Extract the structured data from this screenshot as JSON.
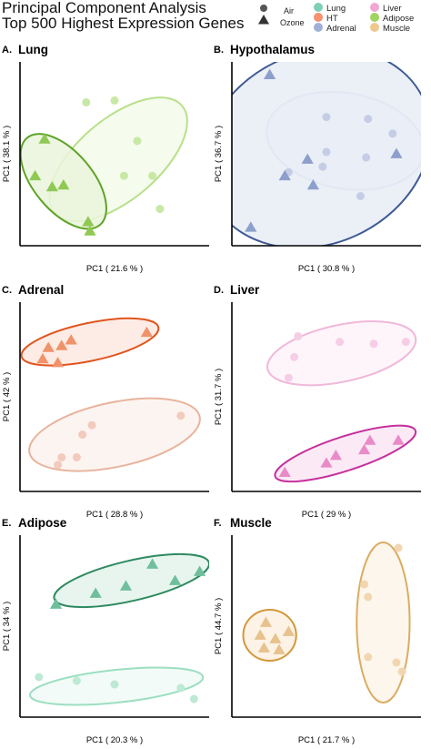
{
  "title_lines": [
    "Principal Component Analysis",
    "Top 500 Highest Expression Genes"
  ],
  "legend": {
    "shapes": [
      {
        "label": "Air",
        "shape": "circle"
      },
      {
        "label": "Ozone",
        "shape": "triangle"
      }
    ],
    "tissues": [
      {
        "label": "Lung",
        "color": "#7fcfb8"
      },
      {
        "label": "HT",
        "color": "#f4916e"
      },
      {
        "label": "Adrenal",
        "color": "#9fb0d8"
      },
      {
        "label": "Liver",
        "color": "#f2a6d3"
      },
      {
        "label": "Adipose",
        "color": "#9ed45f"
      },
      {
        "label": "Muscle",
        "color": "#efc88d"
      }
    ]
  },
  "chart_data": [
    {
      "type": "scatter",
      "panel": "A.",
      "title": "Lung",
      "xlabel": "PC1 ( 21.6 % )",
      "ylabel": "PC1 ( 38.1 % )",
      "colors": {
        "air_point": "#c8e8a6",
        "air_ellipse": "#b8e08a",
        "air_fill": "#f3faea",
        "ozone_point": "#8fc954",
        "ozone_ellipse": "#5ea326",
        "ozone_fill": "#eaf4dc"
      },
      "series": [
        {
          "name": "Air",
          "points": [
            [
              0.35,
              0.78
            ],
            [
              0.5,
              0.79
            ],
            [
              0.62,
              0.57
            ],
            [
              0.7,
              0.38
            ],
            [
              0.55,
              0.38
            ],
            [
              0.74,
              0.2
            ]
          ]
        },
        {
          "name": "Ozone",
          "points": [
            [
              0.13,
              0.58
            ],
            [
              0.08,
              0.38
            ],
            [
              0.17,
              0.32
            ],
            [
              0.23,
              0.33
            ],
            [
              0.36,
              0.13
            ],
            [
              0.37,
              0.08
            ]
          ]
        }
      ],
      "ellipses": [
        {
          "group": "Air",
          "cx": 0.52,
          "cy": 0.47,
          "rx": 0.44,
          "ry": 0.22,
          "angle": -40
        },
        {
          "group": "Ozone",
          "cx": 0.23,
          "cy": 0.35,
          "rx": 0.3,
          "ry": 0.16,
          "angle": 50
        }
      ]
    },
    {
      "type": "scatter",
      "panel": "B.",
      "title": "Hypothalamus",
      "xlabel": "PC1 ( 30.8 % )",
      "ylabel": "PC1 ( 36.7 % )",
      "colors": {
        "air_point": "#c5cde6",
        "air_ellipse": "#c2cce6",
        "air_fill": "#f2f4fa",
        "ozone_point": "#8d9fcb",
        "ozone_ellipse": "#3e5a95",
        "ozone_fill": "#e8ecf5"
      },
      "series": [
        {
          "name": "Air",
          "points": [
            [
              0.5,
              0.7
            ],
            [
              0.72,
              0.69
            ],
            [
              0.85,
              0.61
            ],
            [
              0.5,
              0.51
            ],
            [
              0.71,
              0.48
            ],
            [
              0.48,
              0.43
            ],
            [
              0.68,
              0.27
            ],
            [
              0.3,
              0.4
            ]
          ]
        },
        {
          "name": "Ozone",
          "points": [
            [
              0.2,
              0.93
            ],
            [
              0.4,
              0.47
            ],
            [
              0.28,
              0.38
            ],
            [
              0.43,
              0.33
            ],
            [
              0.87,
              0.5
            ],
            [
              0.1,
              0.1
            ]
          ]
        }
      ],
      "ellipses": [
        {
          "group": "Air",
          "cx": 0.6,
          "cy": 0.57,
          "rx": 0.42,
          "ry": 0.26,
          "angle": 10
        },
        {
          "group": "Ozone",
          "cx": 0.45,
          "cy": 0.53,
          "rx": 0.62,
          "ry": 0.52,
          "angle": -25
        }
      ]
    },
    {
      "type": "scatter",
      "panel": "C.",
      "title": "Adrenal",
      "xlabel": "PC1 ( 28.8 % )",
      "ylabel": "PC1 ( 42 % )",
      "colors": {
        "air_point": "#f2cbbd",
        "air_ellipse": "#e8b49d",
        "air_fill": "#fcf2ee",
        "ozone_point": "#f0926a",
        "ozone_ellipse": "#e1551f",
        "ozone_fill": "#fde9e0"
      },
      "series": [
        {
          "name": "Air",
          "points": [
            [
              0.85,
              0.4
            ],
            [
              0.38,
              0.35
            ],
            [
              0.33,
              0.3
            ],
            [
              0.3,
              0.18
            ],
            [
              0.22,
              0.18
            ],
            [
              0.2,
              0.14
            ]
          ]
        },
        {
          "name": "Ozone",
          "points": [
            [
              0.15,
              0.76
            ],
            [
              0.22,
              0.77
            ],
            [
              0.27,
              0.8
            ],
            [
              0.12,
              0.7
            ],
            [
              0.2,
              0.68
            ],
            [
              0.67,
              0.84
            ]
          ]
        }
      ],
      "ellipses": [
        {
          "group": "Air",
          "cx": 0.5,
          "cy": 0.3,
          "rx": 0.46,
          "ry": 0.17,
          "angle": -12
        },
        {
          "group": "Ozone",
          "cx": 0.37,
          "cy": 0.79,
          "rx": 0.37,
          "ry": 0.1,
          "angle": -12
        }
      ]
    },
    {
      "type": "scatter",
      "panel": "D.",
      "title": "Liver",
      "xlabel": "PC1 ( 29 % )",
      "ylabel": "PC1 ( 31.7 % )",
      "colors": {
        "air_point": "#f6cde6",
        "air_ellipse": "#f0b8d9",
        "air_fill": "#fdf3f9",
        "ozone_point": "#e98bc7",
        "ozone_ellipse": "#c6319e",
        "ozone_fill": "#fae6f3"
      },
      "series": [
        {
          "name": "Air",
          "points": [
            [
              0.35,
              0.82
            ],
            [
              0.57,
              0.79
            ],
            [
              0.75,
              0.78
            ],
            [
              0.92,
              0.79
            ],
            [
              0.33,
              0.71
            ],
            [
              0.3,
              0.6
            ]
          ]
        },
        {
          "name": "Ozone",
          "points": [
            [
              0.88,
              0.27
            ],
            [
              0.73,
              0.27
            ],
            [
              0.7,
              0.22
            ],
            [
              0.55,
              0.19
            ],
            [
              0.5,
              0.15
            ],
            [
              0.28,
              0.1
            ]
          ]
        }
      ],
      "ellipses": [
        {
          "group": "Air",
          "cx": 0.58,
          "cy": 0.73,
          "rx": 0.4,
          "ry": 0.15,
          "angle": -12
        },
        {
          "group": "Ozone",
          "cx": 0.6,
          "cy": 0.2,
          "rx": 0.39,
          "ry": 0.09,
          "angle": -18
        }
      ]
    },
    {
      "type": "scatter",
      "panel": "E.",
      "title": "Adipose",
      "xlabel": "PC1 ( 20.3 % )",
      "ylabel": "PC1 ( 34 % )",
      "colors": {
        "air_point": "#bde9d5",
        "air_ellipse": "#9bdfc1",
        "air_fill": "#f0faf6",
        "ozone_point": "#6fbf9d",
        "ozone_ellipse": "#2e8a60",
        "ozone_fill": "#e4f3ec"
      },
      "series": [
        {
          "name": "Air",
          "points": [
            [
              0.1,
              0.22
            ],
            [
              0.3,
              0.2
            ],
            [
              0.5,
              0.18
            ],
            [
              0.85,
              0.16
            ],
            [
              0.92,
              0.1
            ]
          ]
        },
        {
          "name": "Ozone",
          "points": [
            [
              0.19,
              0.62
            ],
            [
              0.4,
              0.68
            ],
            [
              0.56,
              0.72
            ],
            [
              0.7,
              0.84
            ],
            [
              0.82,
              0.75
            ],
            [
              0.95,
              0.8
            ]
          ]
        }
      ],
      "ellipses": [
        {
          "group": "Air",
          "cx": 0.51,
          "cy": 0.17,
          "rx": 0.46,
          "ry": 0.09,
          "angle": -6
        },
        {
          "group": "Ozone",
          "cx": 0.59,
          "cy": 0.75,
          "rx": 0.42,
          "ry": 0.11,
          "angle": -13
        }
      ]
    },
    {
      "type": "scatter",
      "panel": "F.",
      "title": "Muscle",
      "xlabel": "PC1 ( 21.7 % )",
      "ylabel": "PC1 ( 44.7 % )",
      "colors": {
        "air_point": "#f2d6b0",
        "air_ellipse": "#dbac62",
        "air_fill": "#fcf4e9",
        "ozone_point": "#e7c28e",
        "ozone_ellipse": "#d2983a",
        "ozone_fill": "#fbf0e1"
      },
      "series": [
        {
          "name": "Air",
          "points": [
            [
              0.88,
              0.93
            ],
            [
              0.7,
              0.73
            ],
            [
              0.72,
              0.66
            ],
            [
              0.72,
              0.33
            ],
            [
              0.87,
              0.3
            ],
            [
              0.9,
              0.25
            ]
          ]
        },
        {
          "name": "Ozone",
          "points": [
            [
              0.18,
              0.52
            ],
            [
              0.15,
              0.45
            ],
            [
              0.23,
              0.43
            ],
            [
              0.3,
              0.47
            ],
            [
              0.17,
              0.38
            ],
            [
              0.25,
              0.37
            ]
          ]
        }
      ],
      "ellipses": [
        {
          "group": "Air",
          "cx": 0.8,
          "cy": 0.52,
          "rx": 0.14,
          "ry": 0.44,
          "angle": 0
        },
        {
          "group": "Ozone",
          "cx": 0.2,
          "cy": 0.45,
          "rx": 0.14,
          "ry": 0.14,
          "angle": 0
        }
      ]
    }
  ]
}
